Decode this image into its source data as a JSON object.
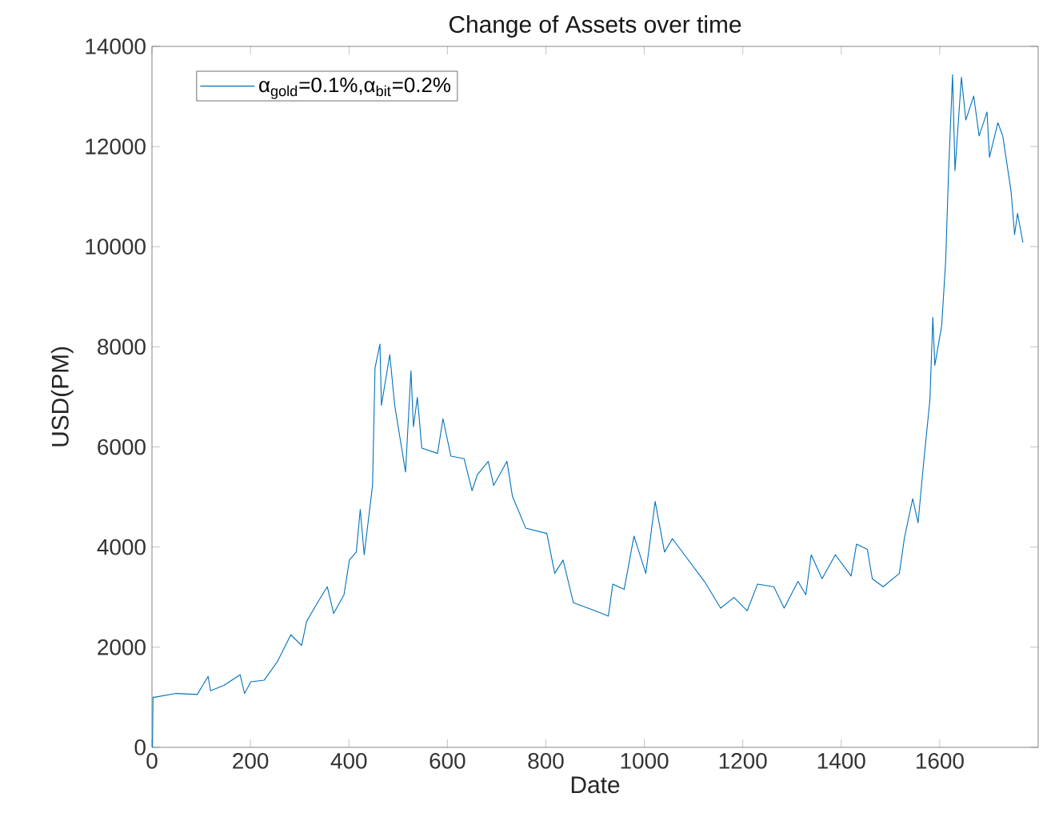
{
  "chart_data": {
    "type": "line",
    "title": "Change of Assets over time",
    "xlabel": "Date",
    "ylabel": "USD(PM)",
    "xlim": [
      0,
      1800
    ],
    "ylim": [
      0,
      14000
    ],
    "xticks": [
      0,
      200,
      400,
      600,
      800,
      1000,
      1200,
      1400,
      1600
    ],
    "yticks": [
      0,
      2000,
      4000,
      6000,
      8000,
      10000,
      12000,
      14000
    ],
    "legend": "top left",
    "series": [
      {
        "name": "α$_{gold}$=0.1%,α$_{bit}$=0.2%",
        "color": "#0072bd",
        "x": [
          1,
          2,
          5,
          49,
          92,
          114,
          119,
          146,
          179,
          188,
          201,
          228,
          255,
          282,
          304,
          314,
          336,
          356,
          369,
          390,
          401,
          415,
          423,
          431,
          448,
          453,
          463,
          466,
          483,
          493,
          515,
          526,
          531,
          539,
          548,
          580,
          591,
          607,
          634,
          650,
          661,
          683,
          694,
          721,
          732,
          759,
          802,
          818,
          835,
          856,
          900,
          927,
          936,
          959,
          979,
          1003,
          1022,
          1041,
          1057,
          1122,
          1155,
          1182,
          1209,
          1230,
          1263,
          1284,
          1312,
          1328,
          1339,
          1361,
          1388,
          1420,
          1431,
          1453,
          1463,
          1485,
          1518,
          1528,
          1545,
          1556,
          1567,
          1580,
          1586,
          1590,
          1604,
          1612,
          1618,
          1626,
          1631,
          1644,
          1653,
          1669,
          1680,
          1696,
          1701,
          1718,
          1728,
          1745,
          1752,
          1758,
          1769
        ],
        "values": [
          0,
          1000,
          1000,
          1077,
          1056,
          1418,
          1130,
          1237,
          1450,
          1077,
          1311,
          1343,
          1716,
          2249,
          2036,
          2515,
          2888,
          3208,
          2675,
          3048,
          3741,
          3901,
          4753,
          3848,
          5232,
          7576,
          8055,
          6830,
          7842,
          6830,
          5498,
          7523,
          6404,
          6990,
          5978,
          5871,
          6564,
          5818,
          5765,
          5126,
          5446,
          5712,
          5232,
          5712,
          5019,
          4380,
          4273,
          3474,
          3741,
          2888,
          2728,
          2622,
          3261,
          3155,
          4220,
          3474,
          4912,
          3901,
          4167,
          3315,
          2781,
          2995,
          2728,
          3261,
          3208,
          2781,
          3315,
          3048,
          3847,
          3368,
          3847,
          3421,
          4060,
          3954,
          3368,
          3208,
          3474,
          4167,
          4966,
          4486,
          5658,
          6937,
          8588,
          7629,
          8428,
          9707,
          11518,
          13436,
          11518,
          13382,
          12530,
          13009,
          12211,
          12690,
          11784,
          12477,
          12211,
          11092,
          10240,
          10665,
          10080
        ]
      }
    ]
  }
}
